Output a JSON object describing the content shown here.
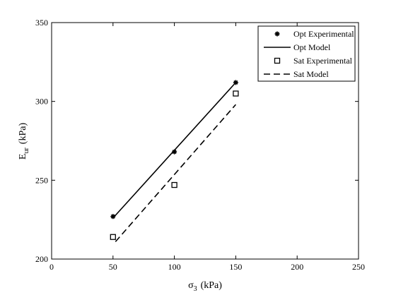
{
  "chart_data": {
    "type": "scatter",
    "title": "",
    "xlabel": {
      "symbol": "σ",
      "subscript": "3",
      "unit": "(kPa)"
    },
    "ylabel": {
      "symbol": "E",
      "subscript": "ur",
      "unit": "(kPa)"
    },
    "xlim": [
      0,
      250
    ],
    "ylim": [
      200,
      350
    ],
    "xticks": [
      0,
      50,
      100,
      150,
      200,
      250
    ],
    "yticks": [
      200,
      250,
      300,
      350
    ],
    "grid": false,
    "legend_position": "top-right",
    "series": [
      {
        "name": "Opt Experimental",
        "kind": "marker",
        "marker": "asterisk",
        "color": "#000000",
        "x": [
          50,
          100,
          150
        ],
        "y": [
          227,
          268,
          312
        ]
      },
      {
        "name": "Opt Model",
        "kind": "line",
        "dash": "solid",
        "color": "#000000",
        "x": [
          50,
          150
        ],
        "y": [
          226,
          312
        ]
      },
      {
        "name": "Sat Experimental",
        "kind": "marker",
        "marker": "square",
        "color": "#000000",
        "x": [
          50,
          100,
          150
        ],
        "y": [
          214,
          247,
          305
        ]
      },
      {
        "name": "Sat Model",
        "kind": "line",
        "dash": "dashed",
        "color": "#000000",
        "x": [
          52,
          150
        ],
        "y": [
          211,
          298
        ]
      }
    ]
  }
}
